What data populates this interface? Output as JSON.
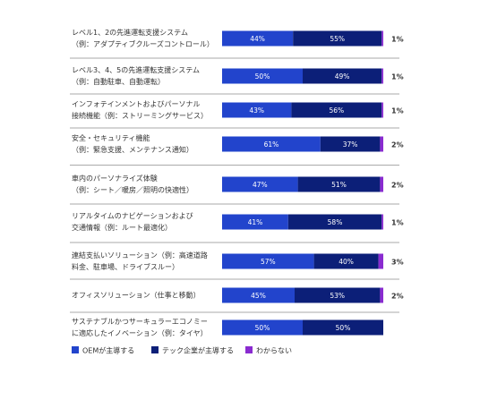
{
  "chart_data": {
    "type": "stacked-bar",
    "categories": [
      [
        "レベル1、2の先進運転支援システム",
        "（例：アダプティブクルーズコントロール）"
      ],
      [
        "レベル3、4、5の先進運転支援システム",
        "（例：自動駐車、自動運転）"
      ],
      [
        "インフォテインメントおよびパーソナル",
        "接続機能（例：ストリーミングサービス）"
      ],
      [
        "安全・セキュリティ機能",
        "（例：緊急支援、メンテナンス通知）"
      ],
      [
        "車内のパーソナライズ体験",
        "（例：シート／暖房／照明の快適性）"
      ],
      [
        "リアルタイムのナビゲーションおよび",
        "交通情報（例：ルート最適化）"
      ],
      [
        "連結支払いソリューション（例：高速道路",
        "料金、駐車場、ドライブスルー）"
      ],
      [
        "オフィスソリューション（仕事と移動）"
      ],
      [
        "サステナブルかつサーキュラーエコノミー",
        "に適応したイノベーション（例：タイヤ）"
      ]
    ],
    "series": [
      {
        "name": "OEMが主導する",
        "color": "#2244cc",
        "values": [
          44,
          50,
          43,
          61,
          47,
          41,
          57,
          45,
          50
        ],
        "value_labels": [
          "44%",
          "50%",
          "43%",
          "61%",
          "47%",
          "41%",
          "57%",
          "45%",
          "50%"
        ]
      },
      {
        "name": "テック企業が主導する",
        "color": "#0c1f78",
        "values": [
          55,
          49,
          56,
          37,
          51,
          58,
          40,
          53,
          50
        ],
        "value_labels": [
          "55%",
          "49%",
          "56%",
          "37%",
          "51%",
          "58%",
          "40%",
          "53%",
          "50%"
        ]
      },
      {
        "name": "わからない",
        "color": "#8a2bd0",
        "values": [
          1,
          1,
          1,
          2,
          2,
          1,
          3,
          2,
          null
        ],
        "value_labels": [
          "1%",
          "1%",
          "1%",
          "2%",
          "2%",
          "1%",
          "3%",
          "2%",
          null
        ]
      }
    ]
  }
}
